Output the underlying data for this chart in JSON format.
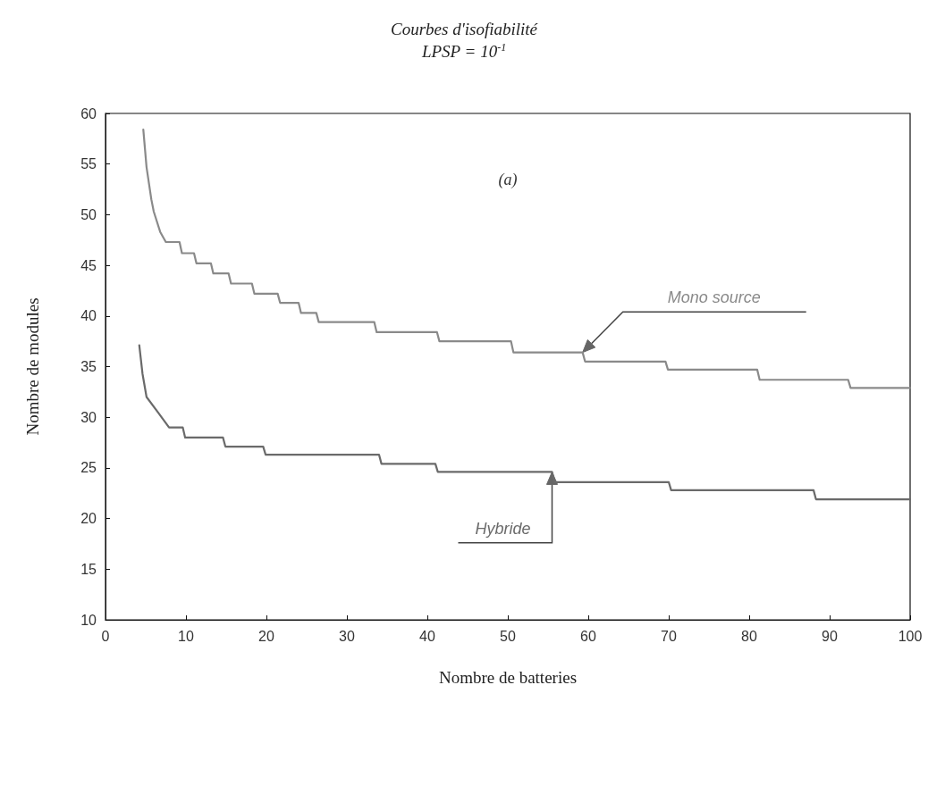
{
  "chart_data": {
    "type": "line",
    "title": "Courbes d'isofiabilité",
    "subtitle": "LPSP = 10$^{-1}$",
    "xlabel": "Nombre de batteries",
    "ylabel": "Nombre de modules",
    "xlim": [
      0,
      100
    ],
    "xticks": [
      0,
      10,
      20,
      30,
      40,
      50,
      60,
      70,
      80,
      90,
      100
    ],
    "ylim": [
      10,
      60
    ],
    "yticks": [
      10,
      15,
      20,
      25,
      30,
      35,
      40,
      45,
      50,
      55,
      60
    ],
    "grid": false,
    "legend": false,
    "marker": "none",
    "line_style": "solid",
    "annotations": [
      "(a)"
    ],
    "series": [
      {
        "name": "Mono source",
        "color": "#8a8a8a",
        "x": [
          4.7,
          5.1,
          5.7,
          6.0,
          6.8,
          7.5,
          9.2,
          9.5,
          11.0,
          11.3,
          13.1,
          13.4,
          15.3,
          15.6,
          18.2,
          18.5,
          21.4,
          21.7,
          24,
          24.3,
          26.2,
          26.5,
          33.4,
          33.7,
          41.2,
          41.5,
          50.4,
          50.7,
          59.3,
          59.6,
          69.6,
          69.9,
          81,
          81.3,
          92.3,
          92.6,
          100
        ],
        "values": [
          58.4,
          54.7,
          51.5,
          50.3,
          48.3,
          47.3,
          47.3,
          46.2,
          46.2,
          45.2,
          45.2,
          44.2,
          44.2,
          43.2,
          43.2,
          42.2,
          42.2,
          41.3,
          41.3,
          40.3,
          40.3,
          39.4,
          39.4,
          38.4,
          38.4,
          37.5,
          37.5,
          36.4,
          36.4,
          35.5,
          35.5,
          34.7,
          34.7,
          33.7,
          33.7,
          32.9,
          32.9
        ]
      },
      {
        "name": "Hybride",
        "color": "#6a6a6a",
        "x": [
          4.2,
          4.6,
          5.1,
          6.6,
          7.9,
          9.6,
          9.9,
          14.6,
          14.9,
          19.6,
          19.9,
          34,
          34.3,
          41,
          41.3,
          55.5,
          55.8,
          70,
          70.3,
          88,
          88.3,
          100
        ],
        "values": [
          37.1,
          34.3,
          32.0,
          30.4,
          29.0,
          29.0,
          28.0,
          28.0,
          27.1,
          27.1,
          26.3,
          26.3,
          25.4,
          25.4,
          24.6,
          24.6,
          23.6,
          23.6,
          22.8,
          22.8,
          21.9,
          21.9
        ]
      }
    ]
  }
}
